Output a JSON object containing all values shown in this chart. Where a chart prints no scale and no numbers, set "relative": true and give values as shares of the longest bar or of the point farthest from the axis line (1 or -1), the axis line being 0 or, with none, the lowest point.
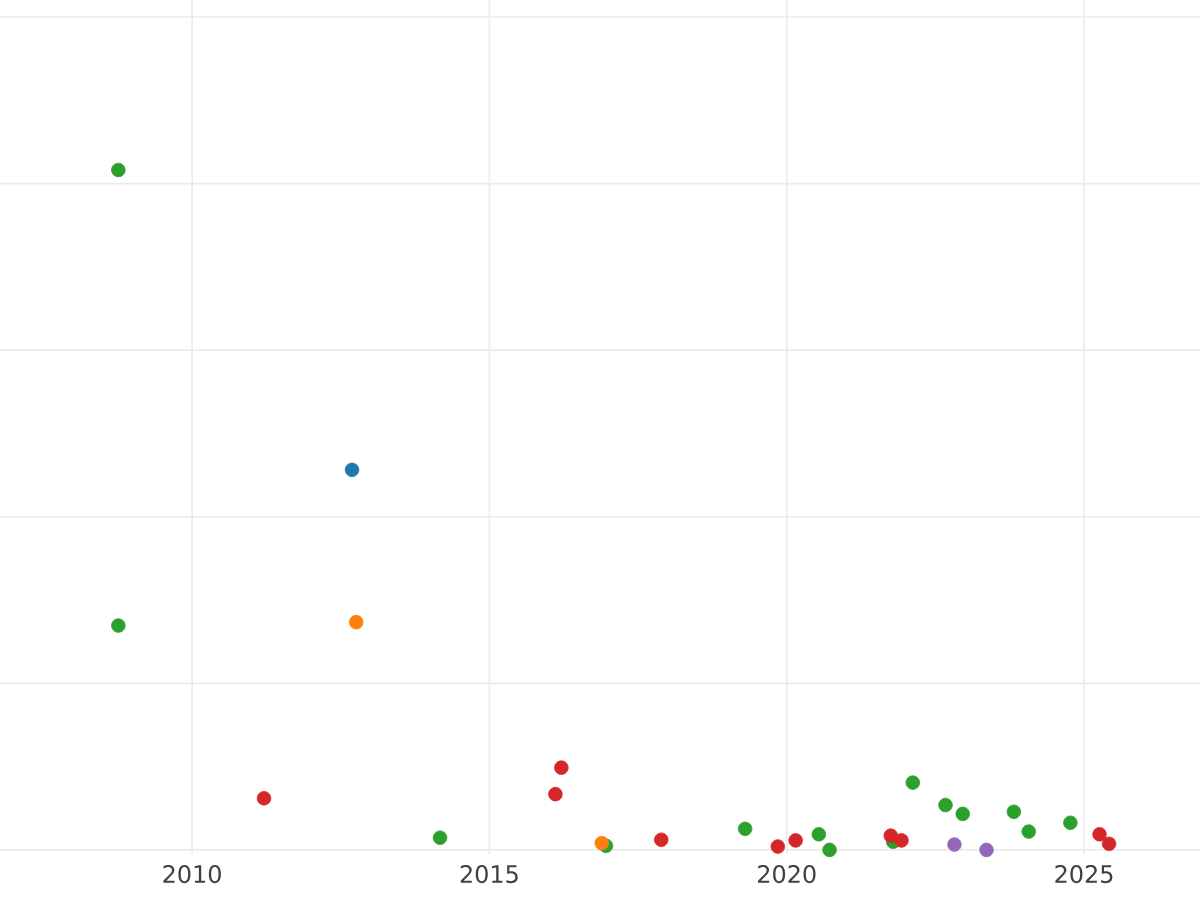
{
  "chart_data": {
    "type": "scatter",
    "relative": true,
    "marker": "circle",
    "grid": true,
    "xlim": [
      2006.77,
      2026.95
    ],
    "xticks": [
      2010,
      2015,
      2020,
      2025
    ],
    "series": [
      {
        "color": "#2ca02c",
        "x": [
          2008.76,
          2008.76,
          2014.17,
          2016.96,
          2019.3,
          2020.54,
          2020.72,
          2021.79,
          2022.12,
          2022.67,
          2022.96,
          2023.82,
          2024.07,
          2024.77
        ],
        "values": [
          1.0,
          0.33,
          0.018,
          0.006,
          0.031,
          0.023,
          0.0,
          0.012,
          0.099,
          0.066,
          0.053,
          0.056,
          0.027,
          0.04
        ]
      },
      {
        "color": "#1f77b4",
        "x": [
          2012.69
        ],
        "values": [
          0.559
        ]
      },
      {
        "color": "#ff7f0e",
        "x": [
          2012.76,
          2016.89
        ],
        "values": [
          0.335,
          0.01
        ]
      },
      {
        "color": "#d62728",
        "x": [
          2011.21,
          2016.21,
          2016.11,
          2017.89,
          2019.85,
          2020.15,
          2021.75,
          2021.93,
          2025.26,
          2025.42
        ],
        "values": [
          0.076,
          0.121,
          0.082,
          0.015,
          0.005,
          0.014,
          0.021,
          0.014,
          0.023,
          0.009
        ]
      },
      {
        "color": "#9467bd",
        "x": [
          2022.82,
          2023.36
        ],
        "values": [
          0.008,
          0.0
        ]
      }
    ]
  }
}
